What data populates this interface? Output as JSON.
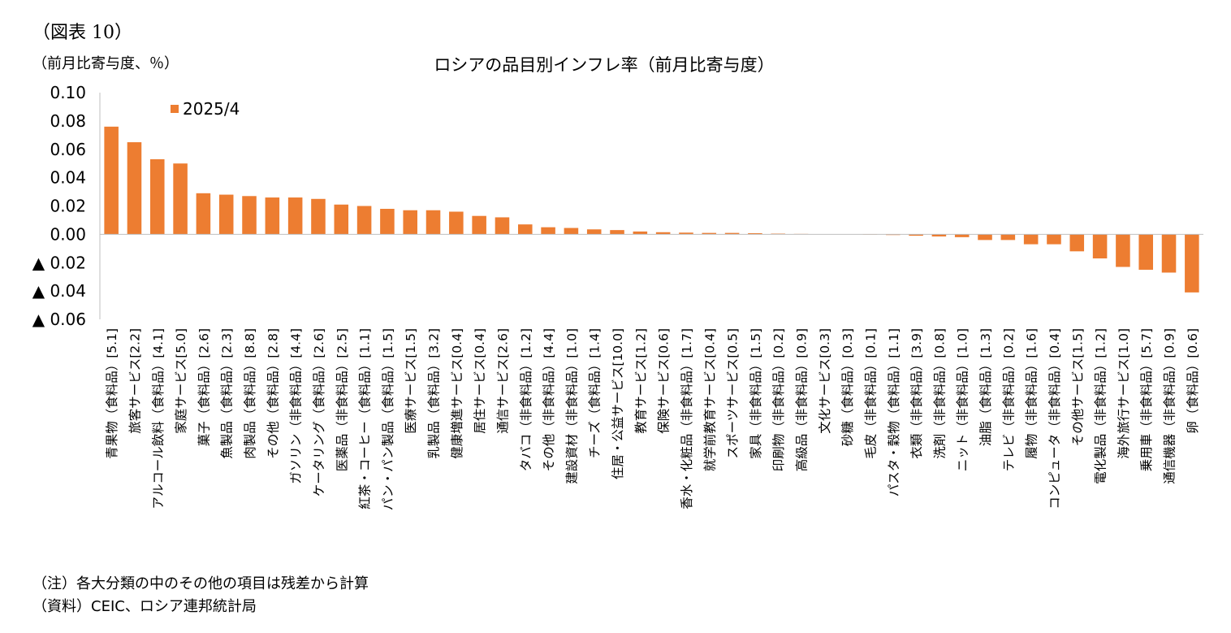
{
  "figure_label": "（図表 10）",
  "unit_label": "（前月比寄与度、％）",
  "notes": [
    "（注）各大分類の中のその他の項目は残差から計算",
    "（資料）CEIC、ロシア連邦統計局"
  ],
  "colors": {
    "bar": "#ED7D31",
    "axis": "#bfbfbf"
  },
  "chart_data": {
    "type": "bar",
    "title": "ロシアの品目別インフレ率（前月比寄与度）",
    "ylim": [
      -0.06,
      0.1
    ],
    "yticks": [
      0.1,
      0.08,
      0.06,
      0.04,
      0.02,
      0.0,
      -0.02,
      -0.04,
      -0.06
    ],
    "ytick_labels": [
      "0.10",
      "0.08",
      "0.06",
      "0.04",
      "0.02",
      "0.00",
      "▲ 0.02",
      "▲ 0.04",
      "▲ 0.06"
    ],
    "grid": false,
    "legend_position": "top-left",
    "categories": [
      "青果物（食料品）[5.1]",
      "旅客サービス[2.2]",
      "アルコール飲料（食料品）[4.1]",
      "家庭サービス[5.0]",
      "菓子（食料品）[2.6]",
      "魚製品（食料品）[2.3]",
      "肉製品（食料品）[8.8]",
      "その他（食料品）[2.8]",
      "ガソリン（非食料品）[4.4]",
      "ケータリング（食料品）[2.6]",
      "医薬品（非食料品）[2.5]",
      "紅茶・コーヒー（食料品）[1.1]",
      "パン・パン製品（食料品）[1.5]",
      "医療サービス[1.5]",
      "乳製品（食料品）[3.2]",
      "健康増進サービス[0.4]",
      "居住サービス[0.4]",
      "通信サービス[2.6]",
      "タバコ（非食料品）[1.2]",
      "その他（非食料品）[4.4]",
      "建設資材（非食料品）[1.0]",
      "チーズ（食料品）[1.4]",
      "住居・公益サービス[10.0]",
      "教育サービス[1.2]",
      "保険サービス[0.6]",
      "香水・化粧品（非食料品）[1.7]",
      "就学前教育サービス[0.4]",
      "スポーツサービス[0.5]",
      "家具（非食料品）[1.5]",
      "印刷物（非食料品）[0.2]",
      "高級品（非食料品）[0.9]",
      "文化サービス[0.3]",
      "砂糖（食料品）[0.3]",
      "毛皮（非食料品）[0.1]",
      "パスタ・穀物（食料品）[1.1]",
      "衣類（非食料品）[3.9]",
      "洗剤（非食料品）[0.8]",
      "ニット（非食料品）[1.0]",
      "油脂（食料品）[1.3]",
      "テレビ（非食料品）[0.2]",
      "履物（非食料品）[1.6]",
      "コンピュータ（非食料品）[0.4]",
      "その他サービス[1.5]",
      "電化製品（非食料品）[1.2]",
      "海外旅行サービス[1.0]",
      "乗用車（非食料品）[5.7]",
      "通信機器（非食料品）[0.9]",
      "卵（食料品）[0.6]"
    ],
    "series": [
      {
        "name": "2025/4",
        "values": [
          0.076,
          0.065,
          0.053,
          0.05,
          0.029,
          0.028,
          0.027,
          0.026,
          0.026,
          0.025,
          0.021,
          0.02,
          0.018,
          0.017,
          0.017,
          0.016,
          0.013,
          0.012,
          0.007,
          0.005,
          0.0045,
          0.0035,
          0.003,
          0.002,
          0.0015,
          0.0012,
          0.001,
          0.001,
          0.0008,
          0.0005,
          0.0003,
          0.0001,
          0.0,
          -0.0002,
          -0.0005,
          -0.001,
          -0.0015,
          -0.002,
          -0.004,
          -0.004,
          -0.007,
          -0.007,
          -0.012,
          -0.017,
          -0.023,
          -0.025,
          -0.027,
          -0.041
        ]
      }
    ]
  }
}
